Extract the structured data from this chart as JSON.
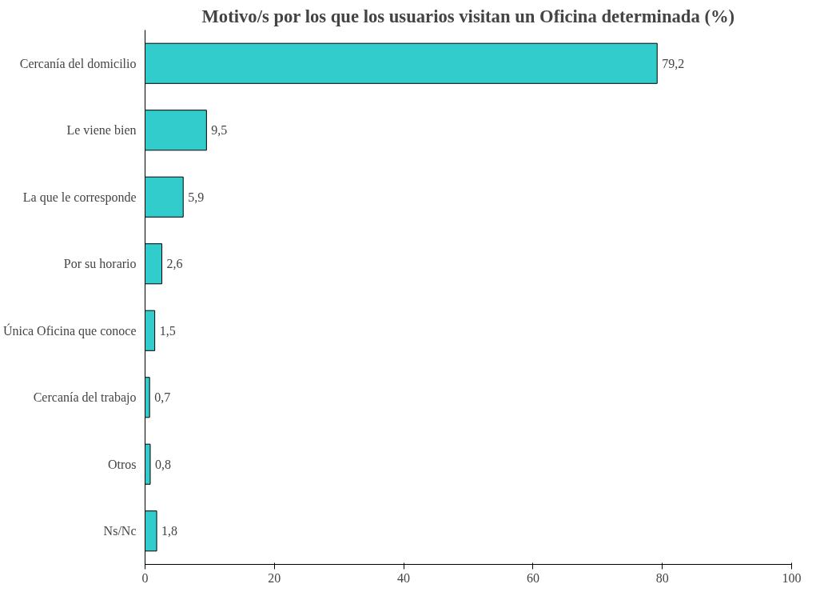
{
  "chart_data": {
    "type": "bar",
    "orientation": "horizontal",
    "title": "Motivo/s por los que los usuarios visitan un Oficina determinada (%)",
    "categories": [
      "Cercanía del domicilio",
      "Le viene bien",
      "La que le corresponde",
      "Por su horario",
      "Única Oficina que conoce",
      "Cercanía del trabajo",
      "Otros",
      "Ns/Nc"
    ],
    "values": [
      79.2,
      9.5,
      5.9,
      2.6,
      1.5,
      0.7,
      0.8,
      1.8
    ],
    "value_labels": [
      "79,2",
      "9,5",
      "5,9",
      "2,6",
      "1,5",
      "0,7",
      "0,8",
      "1,8"
    ],
    "color": "#33cccc",
    "xlim": [
      0,
      100
    ],
    "xticks": [
      0,
      20,
      40,
      60,
      80,
      100
    ],
    "grid": false
  }
}
